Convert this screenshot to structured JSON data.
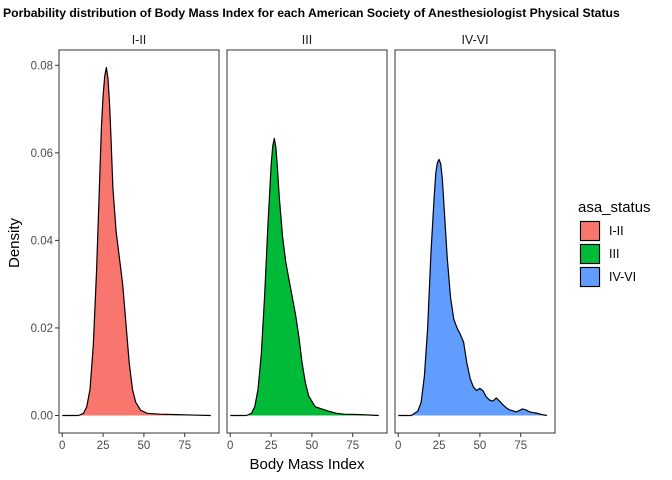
{
  "chart_data": {
    "type": "area",
    "title": "Porbability distribution of Body Mass Index for each American Society of Anesthesiologist Physical Status",
    "xlabel": "Body Mass Index",
    "ylabel": "Density",
    "xlim": [
      -2,
      96
    ],
    "ylim": [
      -0.004,
      0.0835
    ],
    "x_ticks": [
      0,
      25,
      50,
      75
    ],
    "x_tick_labels": [
      "0",
      "25",
      "50",
      "75"
    ],
    "y_ticks": [
      0,
      0.02,
      0.04,
      0.06,
      0.08
    ],
    "y_tick_labels": [
      "0.00",
      "0.02",
      "0.04",
      "0.06",
      "0.08"
    ],
    "grid": false,
    "legend": {
      "title": "asa_status",
      "position": "right",
      "items": [
        {
          "label": "I-II",
          "color": "#F8766D"
        },
        {
          "label": "III",
          "color": "#00BA38"
        },
        {
          "label": "IV-VI",
          "color": "#619CFF"
        }
      ]
    },
    "panels": [
      {
        "strip": "I-II",
        "color": "#F8766D",
        "x": [
          0,
          10,
          13,
          15,
          17,
          19,
          21,
          23,
          24,
          25,
          26,
          27,
          28,
          29,
          30,
          31,
          33,
          35,
          37,
          39,
          41,
          43,
          45,
          48,
          52,
          60,
          70,
          80,
          91
        ],
        "y": [
          0.0,
          0.0,
          0.0005,
          0.002,
          0.006,
          0.016,
          0.033,
          0.055,
          0.066,
          0.073,
          0.0775,
          0.0795,
          0.077,
          0.071,
          0.062,
          0.052,
          0.042,
          0.036,
          0.03,
          0.021,
          0.012,
          0.006,
          0.003,
          0.0012,
          0.0005,
          0.0003,
          0.0002,
          0.0001,
          0.0
        ]
      },
      {
        "strip": "III",
        "color": "#00BA38",
        "x": [
          0,
          10,
          13,
          15,
          17,
          19,
          21,
          23,
          25,
          26,
          27,
          28,
          29,
          30,
          32,
          34,
          36,
          38,
          40,
          42,
          44,
          46,
          48,
          52,
          56,
          60,
          65,
          70,
          80,
          91
        ],
        "y": [
          0.0,
          0.0,
          0.0005,
          0.002,
          0.006,
          0.014,
          0.027,
          0.043,
          0.057,
          0.0615,
          0.0633,
          0.061,
          0.056,
          0.05,
          0.041,
          0.035,
          0.031,
          0.027,
          0.023,
          0.018,
          0.012,
          0.0075,
          0.0045,
          0.002,
          0.0015,
          0.001,
          0.0005,
          0.0003,
          0.0002,
          0.0
        ]
      },
      {
        "strip": "IV-VI",
        "color": "#619CFF",
        "x": [
          0,
          8,
          12,
          14,
          16,
          18,
          20,
          22,
          23,
          24,
          25,
          26,
          27,
          28,
          30,
          32,
          34,
          36,
          38,
          40,
          42,
          44,
          46,
          48,
          50,
          52,
          54,
          56,
          58,
          60,
          62,
          64,
          66,
          68,
          70,
          72,
          74,
          76,
          78,
          80,
          82,
          84,
          86,
          88,
          91
        ],
        "y": [
          0.0,
          0.0,
          0.001,
          0.003,
          0.009,
          0.02,
          0.037,
          0.05,
          0.0555,
          0.0578,
          0.0585,
          0.0575,
          0.054,
          0.048,
          0.036,
          0.027,
          0.022,
          0.02,
          0.0185,
          0.0168,
          0.012,
          0.0085,
          0.0065,
          0.0057,
          0.0062,
          0.0056,
          0.0042,
          0.0035,
          0.0033,
          0.004,
          0.0033,
          0.0025,
          0.0018,
          0.0013,
          0.0011,
          0.0008,
          0.0011,
          0.0015,
          0.0013,
          0.0009,
          0.0007,
          0.0006,
          0.0004,
          0.0002,
          0.0
        ]
      }
    ]
  }
}
